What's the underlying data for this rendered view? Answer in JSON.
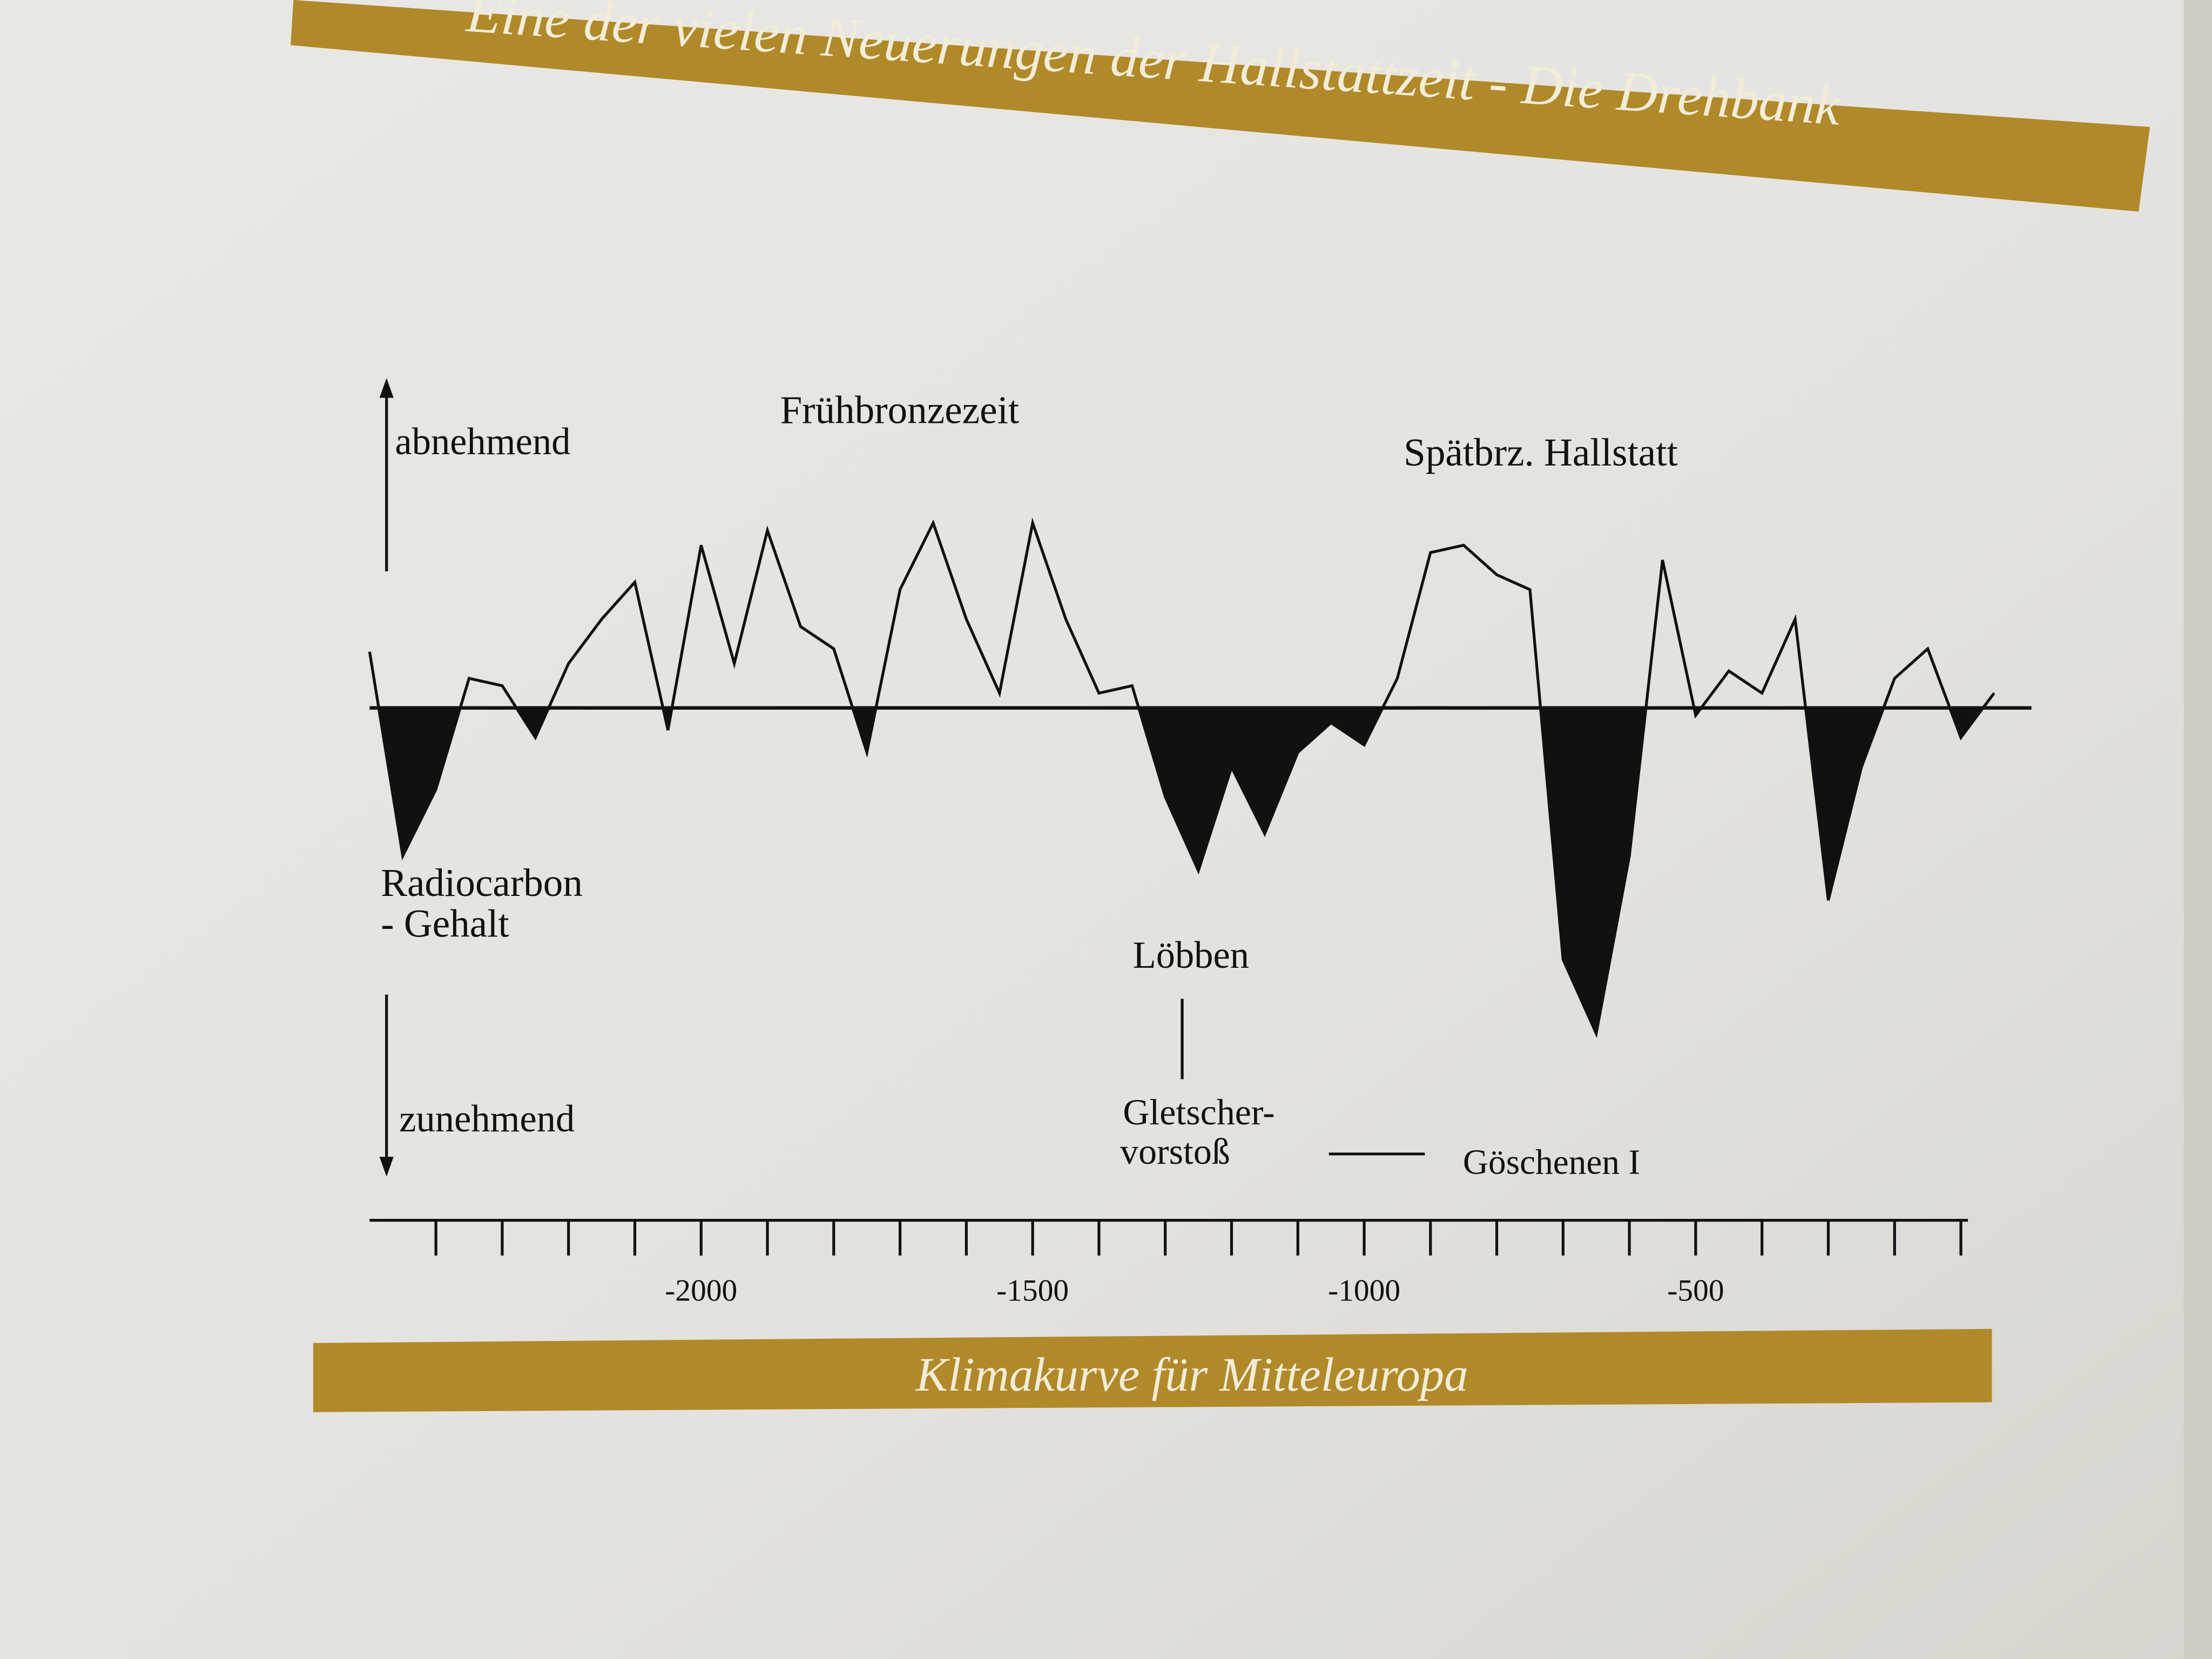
{
  "header": {
    "title": "Eine der vielen Neuerungen der Hallstattzeit - Die Drehbank"
  },
  "chart_data": {
    "type": "line",
    "title": "Klimakurve für Mitteleuropa",
    "y_label_top": "abnehmend",
    "y_label_bottom": "zunehmend",
    "annotations": [
      "Frühbronzezeit",
      "Spätbrz. Hallstatt",
      "Radiocarbon",
      "- Gehalt",
      "Löbben",
      "Gletscher-",
      "vorstoß",
      "Göschenen I"
    ],
    "x": [
      -2500,
      -2450,
      -2400,
      -2350,
      -2300,
      -2250,
      -2200,
      -2150,
      -2100,
      -2050,
      -2000,
      -1950,
      -1900,
      -1850,
      -1800,
      -1750,
      -1700,
      -1650,
      -1600,
      -1550,
      -1500,
      -1450,
      -1400,
      -1350,
      -1300,
      -1250,
      -1200,
      -1150,
      -1100,
      -1050,
      -1000,
      -950,
      -900,
      -850,
      -800,
      -750,
      -700,
      -650,
      -600,
      -550,
      -500,
      -450,
      -400,
      -350,
      -300,
      -250,
      -200,
      -150,
      -100,
      -50
    ],
    "values": [
      38,
      -100,
      -55,
      20,
      15,
      -20,
      30,
      60,
      85,
      -15,
      110,
      30,
      120,
      55,
      40,
      -30,
      80,
      125,
      60,
      10,
      125,
      60,
      10,
      15,
      -60,
      -110,
      -40,
      -85,
      -30,
      -10,
      -25,
      20,
      105,
      110,
      90,
      80,
      -170,
      -220,
      -100,
      100,
      -5,
      25,
      10,
      60,
      -130,
      -40,
      20,
      40,
      -20,
      10
    ],
    "color": "#111111",
    "negative_fill": "#111111",
    "xlim": [
      -2500,
      -100
    ],
    "ylim": [
      -270,
      140
    ],
    "xticks": [
      -2000,
      -1500,
      -1000,
      -500
    ],
    "xticks_minor": [
      -2400,
      -2300,
      -2200,
      -2100,
      -2000,
      -1900,
      -1800,
      -1700,
      -1600,
      -1500,
      -1400,
      -1300,
      -1200,
      -1100,
      -1000,
      -900,
      -800,
      -700,
      -600,
      -500,
      -400,
      -300,
      -200,
      -100
    ]
  }
}
